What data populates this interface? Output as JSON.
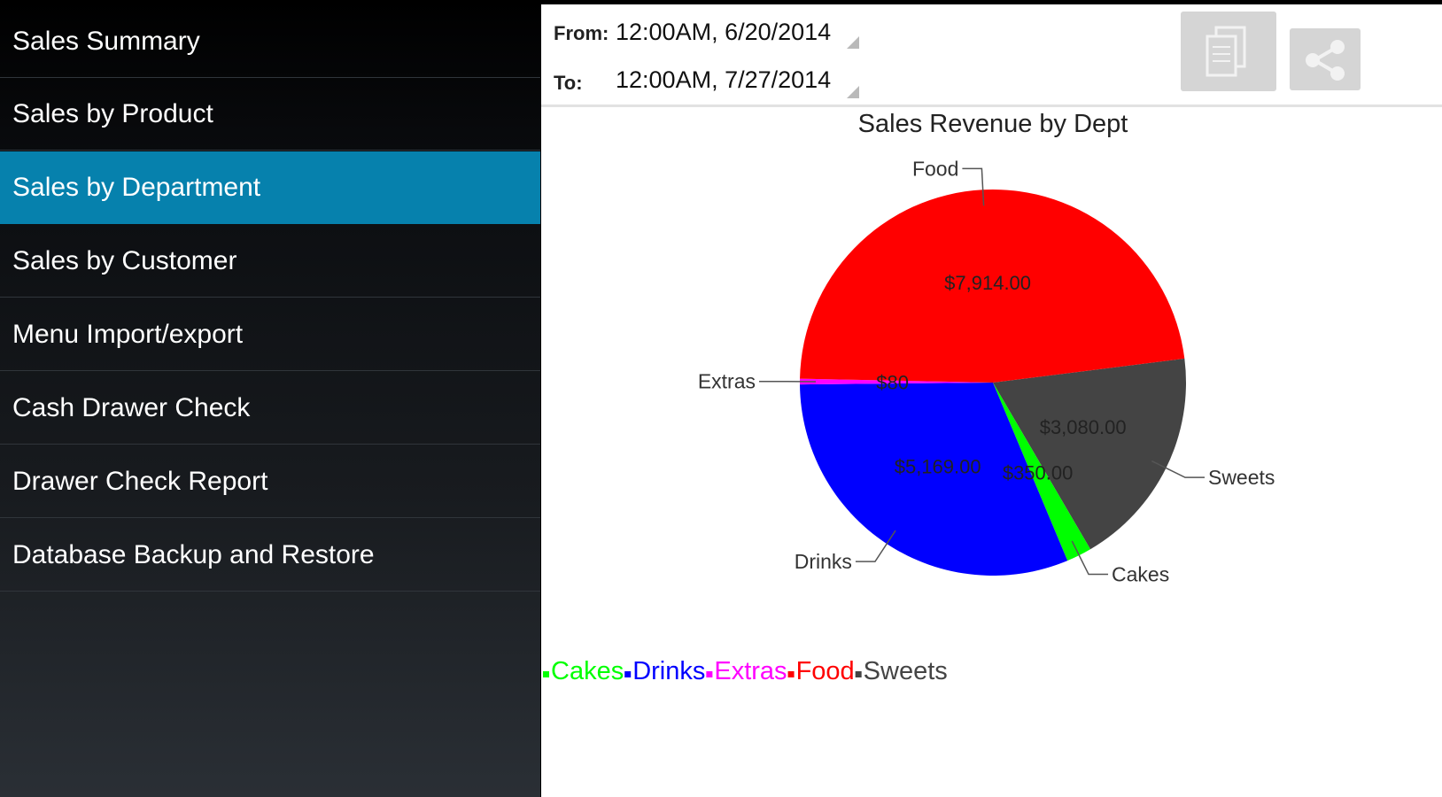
{
  "sidebar": {
    "items": [
      {
        "label": "Sales Summary"
      },
      {
        "label": "Sales by Product"
      },
      {
        "label": "Sales by Department"
      },
      {
        "label": "Sales by Customer"
      },
      {
        "label": "Menu Import/export"
      },
      {
        "label": "Cash Drawer Check"
      },
      {
        "label": "Drawer Check Report"
      },
      {
        "label": "Database Backup and Restore"
      }
    ],
    "selected_index": 2,
    "selected_color": "#0681ad"
  },
  "filters": {
    "from_label": "From:",
    "from_value": "12:00AM, 6/20/2014",
    "to_label": "To:",
    "to_value": "12:00AM, 7/27/2014"
  },
  "toolbar": {
    "copy_icon": "copy-icon",
    "share_icon": "share-icon"
  },
  "chart_data": {
    "type": "pie",
    "title": "Sales Revenue by Dept",
    "legend_position": "bottom-left",
    "slices": [
      {
        "name": "Sweets",
        "value": 3080,
        "value_label": "$3,080.00",
        "color": "#444444"
      },
      {
        "name": "Cakes",
        "value": 350,
        "value_label": "$350.00",
        "color": "#00ff00"
      },
      {
        "name": "Drinks",
        "value": 5169,
        "value_label": "$5,169.00",
        "color": "#0000ff"
      },
      {
        "name": "Extras",
        "value": 80,
        "value_label": "$80",
        "color": "#ff00ff"
      },
      {
        "name": "Food",
        "value": 7914,
        "value_label": "$7,914.00",
        "color": "#ff0000"
      }
    ],
    "legend": [
      {
        "name": "Cakes",
        "color": "#00ff00"
      },
      {
        "name": "Drinks",
        "color": "#0000ff"
      },
      {
        "name": "Extras",
        "color": "#ff00ff"
      },
      {
        "name": "Food",
        "color": "#ff0000"
      },
      {
        "name": "Sweets",
        "color": "#444444"
      }
    ]
  }
}
